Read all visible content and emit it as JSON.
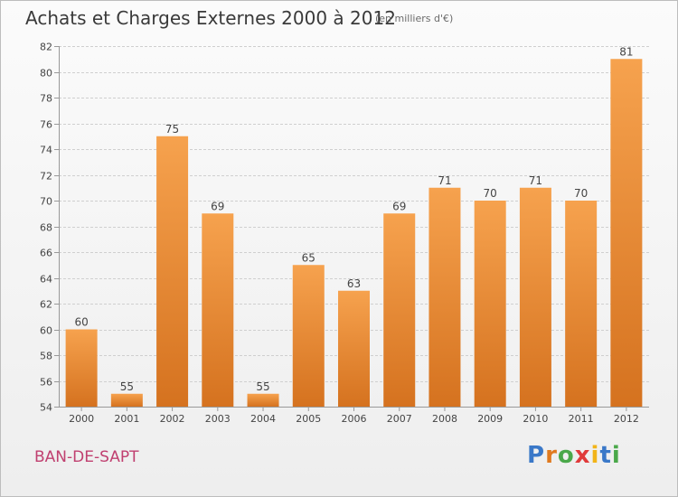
{
  "header": {
    "title": "Achats et Charges Externes 2000 à 2012",
    "subtitle": "(en milliers d'€)"
  },
  "footer": {
    "commune": "BAN-DE-SAPT",
    "logo_text": "Proxiti"
  },
  "colors": {
    "bar_top": "#f6a24e",
    "bar_bottom": "#d5721f",
    "commune_text": "#c04070",
    "grid": "#cfcfcf"
  },
  "chart_data": {
    "type": "bar",
    "categories": [
      "2000",
      "2001",
      "2002",
      "2003",
      "2004",
      "2005",
      "2006",
      "2007",
      "2008",
      "2009",
      "2010",
      "2011",
      "2012"
    ],
    "values": [
      60,
      55,
      75,
      69,
      55,
      65,
      63,
      69,
      71,
      70,
      71,
      70,
      81
    ],
    "title": "Achats et Charges Externes 2000 à 2012",
    "ylim": [
      54,
      82
    ],
    "yticks": [
      54,
      56,
      58,
      60,
      62,
      64,
      66,
      68,
      70,
      72,
      74,
      76,
      78,
      80,
      82
    ],
    "grid": true,
    "data_labels": true
  }
}
